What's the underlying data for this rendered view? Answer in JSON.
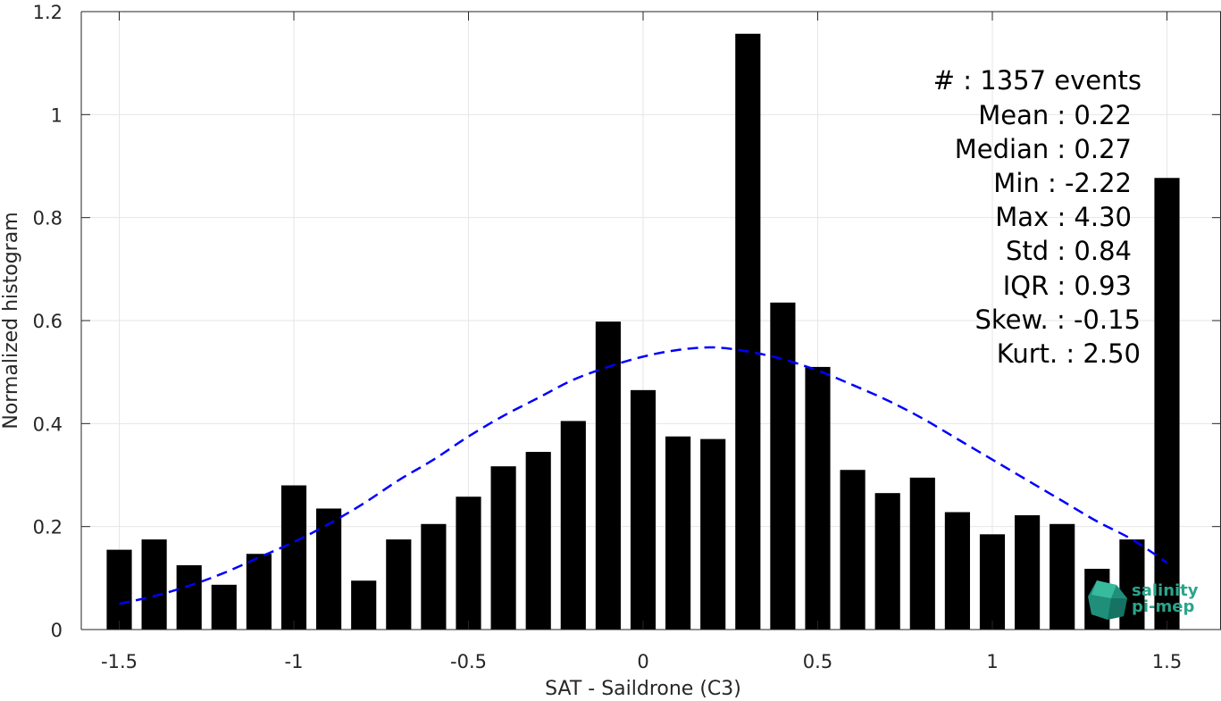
{
  "chart_data": {
    "type": "bar",
    "xlabel": "SAT - Saildrone (C3)",
    "ylabel": "Normalized histogram",
    "xlim": [
      -1.55,
      1.55
    ],
    "ylim": [
      0,
      1.2
    ],
    "grid": true,
    "x_ticks": [
      {
        "value": -1.5,
        "label": "-1.5"
      },
      {
        "value": -1.0,
        "label": "-1"
      },
      {
        "value": -0.5,
        "label": "-0.5"
      },
      {
        "value": 0.0,
        "label": "0"
      },
      {
        "value": 0.5,
        "label": "0.5"
      },
      {
        "value": 1.0,
        "label": "1"
      },
      {
        "value": 1.5,
        "label": "1.5"
      }
    ],
    "y_ticks": [
      {
        "value": 0,
        "label": "0"
      },
      {
        "value": 0.2,
        "label": "0.2"
      },
      {
        "value": 0.4,
        "label": "0.4"
      },
      {
        "value": 0.6,
        "label": "0.6"
      },
      {
        "value": 0.8,
        "label": "0.8"
      },
      {
        "value": 1.0,
        "label": "1"
      },
      {
        "value": 1.2,
        "label": "1.2"
      }
    ],
    "bin_width": 0.1,
    "bars": {
      "x": [
        -1.5,
        -1.4,
        -1.3,
        -1.2,
        -1.1,
        -1.0,
        -0.9,
        -0.8,
        -0.7,
        -0.6,
        -0.5,
        -0.4,
        -0.3,
        -0.2,
        -0.1,
        0.0,
        0.1,
        0.2,
        0.3,
        0.4,
        0.5,
        0.6,
        0.7,
        0.8,
        0.9,
        1.0,
        1.1,
        1.2,
        1.3,
        1.4,
        1.5
      ],
      "values": [
        0.155,
        0.175,
        0.125,
        0.087,
        0.147,
        0.28,
        0.235,
        0.095,
        0.175,
        0.205,
        0.258,
        0.317,
        0.345,
        0.405,
        0.598,
        0.465,
        0.375,
        0.37,
        1.157,
        0.635,
        0.51,
        0.31,
        0.265,
        0.295,
        0.228,
        0.185,
        0.222,
        0.205,
        0.118,
        0.175,
        0.877
      ],
      "color": "#000000"
    },
    "fit_curve": {
      "style": "dashed",
      "color": "#0000ff",
      "x": [
        -1.5,
        -1.4,
        -1.3,
        -1.2,
        -1.1,
        -1.0,
        -0.9,
        -0.8,
        -0.7,
        -0.6,
        -0.5,
        -0.4,
        -0.3,
        -0.2,
        -0.1,
        0.0,
        0.1,
        0.2,
        0.3,
        0.4,
        0.5,
        0.6,
        0.7,
        0.8,
        0.9,
        1.0,
        1.1,
        1.2,
        1.3,
        1.4,
        1.5
      ],
      "y": [
        0.05,
        0.065,
        0.085,
        0.11,
        0.14,
        0.17,
        0.205,
        0.245,
        0.29,
        0.33,
        0.375,
        0.415,
        0.45,
        0.485,
        0.51,
        0.53,
        0.543,
        0.548,
        0.54,
        0.525,
        0.503,
        0.475,
        0.445,
        0.41,
        0.37,
        0.33,
        0.29,
        0.25,
        0.21,
        0.175,
        0.13
      ]
    }
  },
  "stats": {
    "lines": [
      "#  : 1357 events",
      "Mean : 0.22",
      "Median : 0.27",
      "Min : -2.22",
      "Max : 4.30",
      "Std : 0.84",
      "IQR : 0.93",
      "Skew. : -0.15",
      "Kurt. : 2.50"
    ]
  },
  "logo": {
    "line1": "salinity",
    "line2": "pi-mep",
    "color": "#2aa58a"
  }
}
